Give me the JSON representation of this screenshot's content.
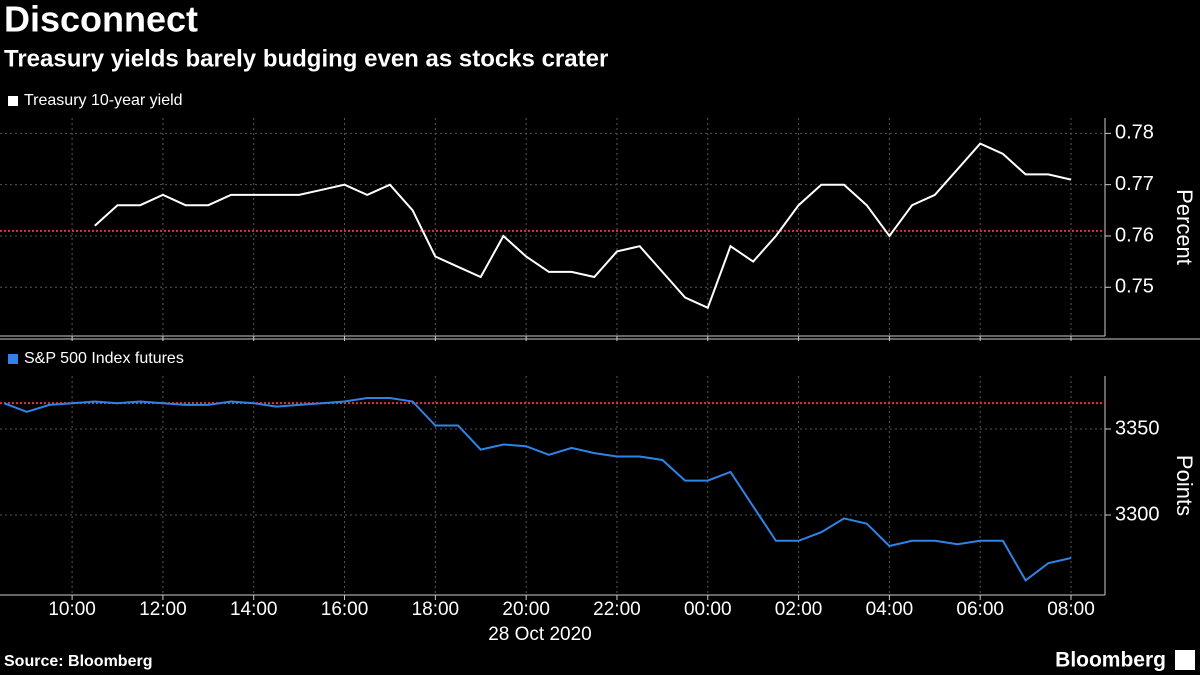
{
  "header": {
    "title": "Disconnect",
    "subtitle": "Treasury yields barely budging even as stocks crater"
  },
  "source": "Source: Bloomberg",
  "brand": "Bloomberg",
  "chart_data": [
    {
      "type": "line",
      "y_label": "Percent",
      "x": [
        "08:30",
        "09:00",
        "09:30",
        "10:00",
        "10:30",
        "11:00",
        "11:30",
        "12:00",
        "12:30",
        "13:00",
        "13:30",
        "14:00",
        "14:30",
        "15:00",
        "15:30",
        "16:00",
        "16:30",
        "17:00",
        "17:30",
        "18:00",
        "18:30",
        "19:00",
        "19:30",
        "20:00",
        "20:30",
        "21:00",
        "21:30",
        "22:00",
        "22:30",
        "23:00",
        "23:30",
        "00:00",
        "00:30",
        "01:00",
        "01:30",
        "02:00",
        "02:30",
        "03:00",
        "03:30",
        "04:00",
        "04:30",
        "05:00",
        "05:30",
        "06:00",
        "06:30",
        "07:00",
        "07:30",
        "08:00"
      ],
      "series": [
        {
          "name": "Treasury 10-year yield",
          "color": "#ffffff",
          "values": [
            null,
            null,
            null,
            null,
            0.762,
            0.766,
            0.766,
            0.768,
            0.766,
            0.766,
            0.768,
            0.768,
            0.768,
            0.768,
            0.769,
            0.77,
            0.768,
            0.77,
            0.765,
            0.756,
            0.754,
            0.752,
            0.76,
            0.756,
            0.753,
            0.753,
            0.752,
            0.757,
            0.758,
            0.753,
            0.748,
            0.746,
            0.758,
            0.755,
            0.76,
            0.766,
            0.77,
            0.77,
            0.766,
            0.76,
            0.766,
            0.768,
            0.773,
            0.778,
            0.776,
            0.772,
            0.772,
            0.771
          ]
        }
      ],
      "reference_line": 0.761,
      "reference_color": "#e0342f",
      "ylim": [
        0.7405,
        0.783
      ],
      "yticks": [
        0.75,
        0.76,
        0.77,
        0.78
      ],
      "grid": true
    },
    {
      "type": "line",
      "y_label": "Points",
      "x": [
        "08:30",
        "09:00",
        "09:30",
        "10:00",
        "10:30",
        "11:00",
        "11:30",
        "12:00",
        "12:30",
        "13:00",
        "13:30",
        "14:00",
        "14:30",
        "15:00",
        "15:30",
        "16:00",
        "16:30",
        "17:00",
        "17:30",
        "18:00",
        "18:30",
        "19:00",
        "19:30",
        "20:00",
        "20:30",
        "21:00",
        "21:30",
        "22:00",
        "22:30",
        "23:00",
        "23:30",
        "00:00",
        "00:30",
        "01:00",
        "01:30",
        "02:00",
        "02:30",
        "03:00",
        "03:30",
        "04:00",
        "04:30",
        "05:00",
        "05:30",
        "06:00",
        "06:30",
        "07:00",
        "07:30",
        "08:00"
      ],
      "series": [
        {
          "name": "S&P 500 Index futures",
          "color": "#2e84e6",
          "values": [
            3365,
            3360,
            3364,
            3365,
            3366,
            3365,
            3366,
            3365,
            3364,
            3364,
            3366,
            3365,
            3363,
            3364,
            3365,
            3366,
            3368,
            3368,
            3366,
            3352,
            3352,
            3338,
            3341,
            3340,
            3335,
            3339,
            3336,
            3334,
            3334,
            3332,
            3320,
            3320,
            3325,
            3305,
            3285,
            3285,
            3290,
            3298,
            3295,
            3282,
            3285,
            3285,
            3283,
            3285,
            3285,
            3262,
            3272,
            3275
          ]
        }
      ],
      "reference_line": 3365,
      "reference_color": "#e0342f",
      "ylim": [
        3253.5,
        3380.8
      ],
      "yticks": [
        3300,
        3350
      ],
      "grid": true,
      "xticks": [
        "10:00",
        "12:00",
        "14:00",
        "16:00",
        "18:00",
        "20:00",
        "22:00",
        "00:00",
        "02:00",
        "04:00",
        "06:00",
        "08:00"
      ],
      "date_label": "28 Oct 2020"
    }
  ]
}
